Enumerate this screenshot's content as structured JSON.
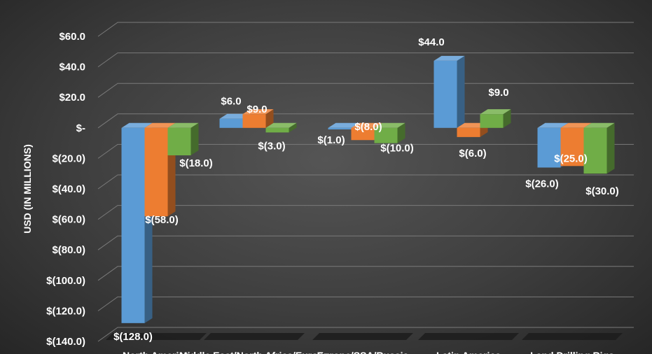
{
  "chart_data": {
    "type": "bar",
    "title": "",
    "ylabel": "USD (IN MILLIONS)",
    "ylim": [
      -140,
      60
    ],
    "yticks": [
      60,
      40,
      20,
      0,
      -20,
      -40,
      -60,
      -80,
      -100,
      -120,
      -140
    ],
    "ytick_labels": [
      "$60.0",
      "$40.0",
      "$20.0",
      "$-",
      "$(20.0)",
      "$(40.0)",
      "$(60.0)",
      "$(80.0)",
      "$(100.0)",
      "$(120.0)",
      "$(140.0)"
    ],
    "categories": [
      "North America",
      "Middle East/North Africa/Europe",
      "Europe/SSA/Russia",
      "Latin America",
      "Land Drilling Rigs"
    ],
    "series": [
      {
        "color": "#5b9bd5",
        "values": [
          -128.0,
          6.0,
          -1.0,
          44.0,
          -26.0
        ],
        "labels": [
          "$(128.0)",
          "$6.0",
          "$(1.0)",
          "$44.0",
          "$(26.0)"
        ]
      },
      {
        "color": "#ed7d31",
        "values": [
          -58.0,
          9.0,
          -8.0,
          -6.0,
          -25.0
        ],
        "labels": [
          "$(58.0)",
          "$9.0",
          "$(8.0)",
          "$(6.0)",
          "$(25.0)"
        ]
      },
      {
        "color": "#70ad47",
        "values": [
          -18.0,
          -3.0,
          -10.0,
          9.0,
          -30.0
        ],
        "labels": [
          "$(18.0)",
          "$(3.0)",
          "$(10.0)",
          "$9.0",
          "$(30.0)"
        ]
      }
    ],
    "grid": true,
    "legend": "none"
  }
}
